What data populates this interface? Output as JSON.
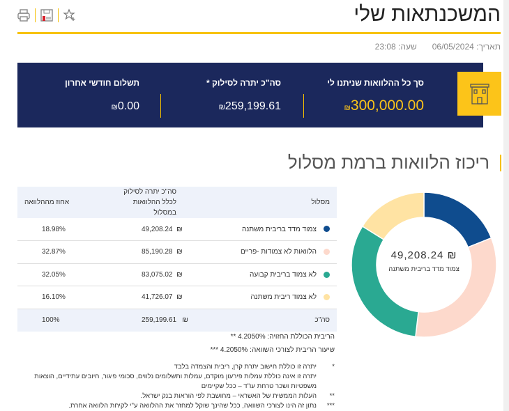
{
  "header": {
    "title": "המשכנתאות שלי",
    "date_label": "תאריך:",
    "date": "06/05/2024",
    "time_label": "שעה:",
    "time": "23:08"
  },
  "toolbar": {
    "icons": [
      "print-icon",
      "save-icon",
      "favorite-add-icon"
    ]
  },
  "summary": {
    "currency": "₪",
    "total_loans": {
      "label": "סך כל ההלוואות שניתנו לי",
      "value": "300,000.00"
    },
    "balance": {
      "label": "סה\"כ יתרה לסילוק *",
      "value": "259,199.61"
    },
    "last_payment": {
      "label": "תשלום חודשי אחרון",
      "value": "0.00"
    },
    "icon": "building-icon"
  },
  "section": {
    "title": "ריכוז הלוואות ברמת מסלול"
  },
  "table": {
    "headers": {
      "track": "מסלול",
      "balance": "סה\"כ יתרה לסילוק לכלל ההלוואות במסלול",
      "percent": "אחוז מההלוואה"
    },
    "rows": [
      {
        "track": "צמוד מדד בריבית משתנה",
        "balance": "49,208.24",
        "currency": "₪",
        "percent": "18.98%",
        "color": "#0f4c8e"
      },
      {
        "track": "הלוואות לא צמודות -פריים",
        "balance": "85,190.28",
        "currency": "₪",
        "percent": "32.87%",
        "color": "#fdd9cc"
      },
      {
        "track": "לא צמוד בריבית קבועה",
        "balance": "83,075.02",
        "currency": "₪",
        "percent": "32.05%",
        "color": "#2aa992"
      },
      {
        "track": "לא צמוד ריבית משתנה",
        "balance": "41,726.07",
        "currency": "₪",
        "percent": "16.10%",
        "color": "#ffe3a3"
      }
    ],
    "total": {
      "label": "סה\"כ",
      "balance": "259,199.61",
      "currency": "₪",
      "percent": "100%"
    }
  },
  "rates": {
    "expected_label": "הריבית הכוללת החזויה:",
    "expected": "4.2050%",
    "expected_mark": "**",
    "compare_label": "שיעור הריבית לצורכי השוואה:",
    "compare": "4.2050%",
    "compare_mark": "***"
  },
  "footnotes": [
    {
      "mark": "*",
      "lines": [
        "יתרה זו כוללת חישוב יתרת קרן, ריבית והצמדה בלבד",
        "יתרה זו אינה כוללת עמלות פירעון מוקדם, עמלות ותשלומים נלווים, סכומי פיגור, חיובים עתידיים, הוצאות משפטיות ושכר טרחת עו\"ד – ככל שקיימים"
      ]
    },
    {
      "mark": "**",
      "lines": [
        "העלות הממשית של האשראי – מחושבת לפי הוראות בנק ישראל."
      ]
    },
    {
      "mark": "***",
      "lines": [
        "נתון זה הינו לצורכי השוואה, ככל שהינך שוקל למחזר את ההלוואה ע\"י לקיחת הלוואה אחרת."
      ]
    }
  ],
  "chart_data": {
    "type": "pie",
    "variant": "donut",
    "categories": [
      "צמוד מדד בריבית משתנה",
      "הלוואות לא צמודות -פריים",
      "לא צמוד בריבית קבועה",
      "לא צמוד ריבית משתנה"
    ],
    "values": [
      18.98,
      32.87,
      32.05,
      16.1
    ],
    "colors": [
      "#0f4c8e",
      "#fdd9cc",
      "#2aa992",
      "#ffe3a3"
    ],
    "center": {
      "value": "₪ 49,208.24",
      "label": "צמוד מדד בריבית משתנה"
    }
  }
}
